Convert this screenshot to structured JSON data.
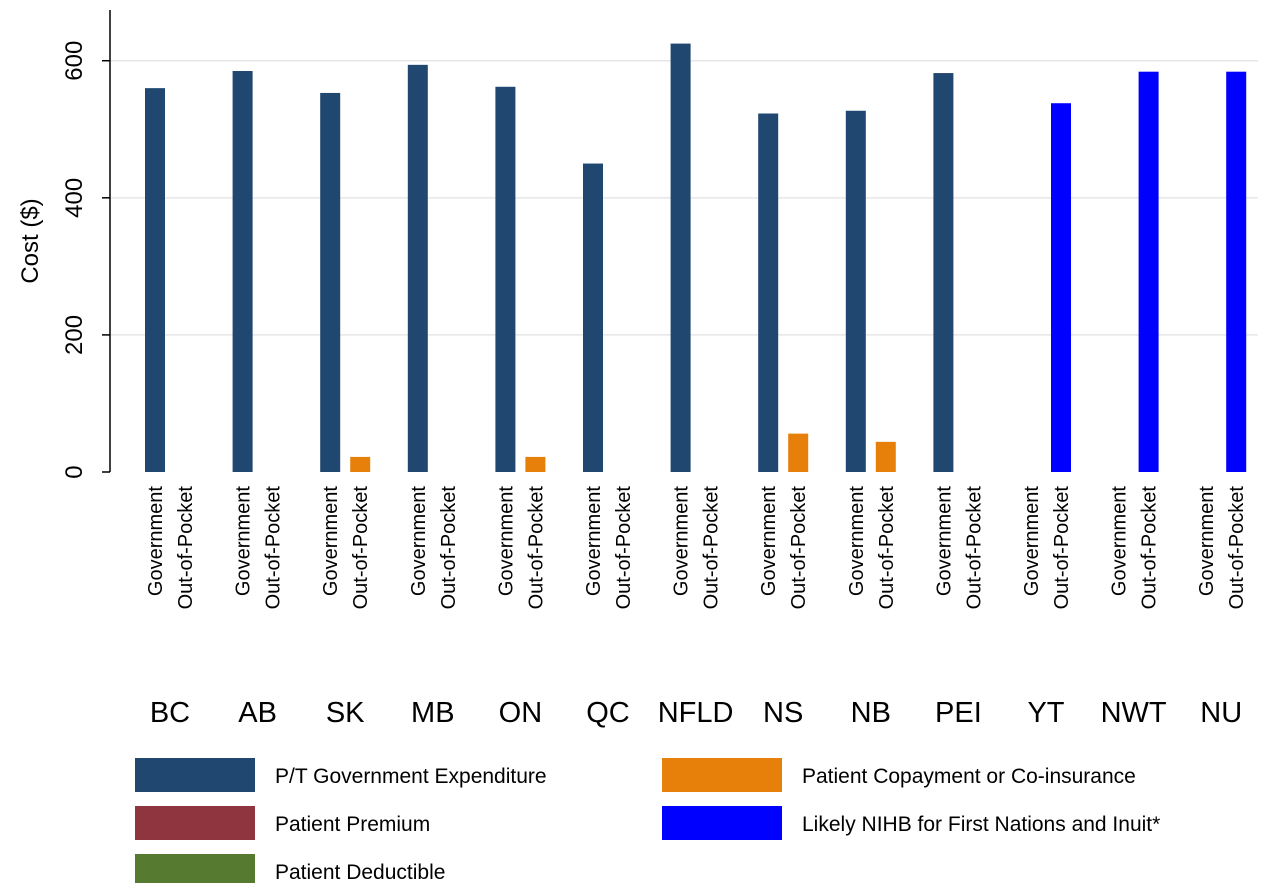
{
  "chart_data": {
    "type": "bar",
    "y_label": "Cost ($)",
    "categories": [
      "BC",
      "AB",
      "SK",
      "MB",
      "ON",
      "QC",
      "NFLD",
      "NS",
      "NB",
      "PEI",
      "YT",
      "NWT",
      "NU"
    ],
    "subcategories": [
      "Government",
      "Out-of-Pocket"
    ],
    "series": [
      {
        "name": "P/T Government Expenditure",
        "color": "#1f4770",
        "slot": 0,
        "values": [
          560,
          585,
          553,
          594,
          562,
          450,
          625,
          523,
          527,
          582,
          null,
          null,
          null
        ]
      },
      {
        "name": "Patient Copayment or Co-insurance",
        "color": "#e6800a",
        "slot": 1,
        "values": [
          0,
          0,
          22,
          0,
          22,
          0,
          0,
          56,
          44,
          0,
          null,
          null,
          null
        ]
      },
      {
        "name": "Patient Premium",
        "color": "#8e3540",
        "slot": 1,
        "values": [
          0,
          0,
          0,
          0,
          0,
          0,
          0,
          0,
          0,
          0,
          null,
          null,
          null
        ]
      },
      {
        "name": "Likely NIHB for First Nations and Inuit*",
        "color": "#0000ff",
        "slot": 1,
        "values": [
          null,
          null,
          null,
          null,
          null,
          null,
          null,
          null,
          null,
          null,
          538,
          584,
          584
        ]
      },
      {
        "name": "Patient Deductible",
        "color": "#567a30",
        "slot": 1,
        "values": [
          0,
          0,
          0,
          0,
          0,
          0,
          0,
          0,
          0,
          0,
          null,
          null,
          null
        ]
      }
    ],
    "ylim": [
      0,
      674
    ],
    "yticks": [
      0,
      200,
      400,
      600
    ],
    "grid": true,
    "legend_columns": 2
  }
}
